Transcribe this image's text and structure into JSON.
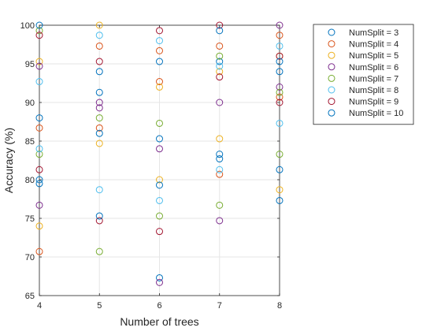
{
  "chart_data": {
    "type": "scatter",
    "xlabel": "Number of trees",
    "ylabel": "Accuracy (%)",
    "xlim": [
      4,
      8
    ],
    "ylim": [
      65,
      100
    ],
    "xticks": [
      "4",
      "5",
      "6",
      "7",
      "8"
    ],
    "yticks": [
      "65",
      "70",
      "75",
      "80",
      "85",
      "90",
      "95",
      "100"
    ],
    "grid": true,
    "legend_position": "top-right, outside plot",
    "marker": "open circle",
    "series": [
      {
        "name": "NumSplit = 3",
        "color": "#0072BD",
        "points": [
          [
            4,
            88.0
          ],
          [
            4,
            79.5
          ],
          [
            5,
            94.0
          ],
          [
            5,
            91.3
          ],
          [
            6,
            67.3
          ],
          [
            6,
            85.3
          ],
          [
            7,
            82.7
          ],
          [
            7,
            95.3
          ],
          [
            8,
            81.3
          ],
          [
            8,
            94.0
          ]
        ]
      },
      {
        "name": "NumSplit = 4",
        "color": "#D95319",
        "points": [
          [
            4,
            70.7
          ],
          [
            4,
            86.7
          ],
          [
            5,
            86.7
          ],
          [
            5,
            97.3
          ],
          [
            6,
            92.7
          ],
          [
            6,
            96.7
          ],
          [
            7,
            80.7
          ],
          [
            7,
            97.3
          ],
          [
            8,
            90.7
          ],
          [
            8,
            98.7
          ]
        ]
      },
      {
        "name": "NumSplit = 5",
        "color": "#EDB120",
        "points": [
          [
            4,
            74.0
          ],
          [
            4,
            95.3
          ],
          [
            5,
            84.7
          ],
          [
            5,
            100.0
          ],
          [
            6,
            80.0
          ],
          [
            6,
            92.0
          ],
          [
            7,
            85.3
          ],
          [
            7,
            94.0
          ],
          [
            8,
            78.7
          ],
          [
            8,
            96.0
          ]
        ]
      },
      {
        "name": "NumSplit = 6",
        "color": "#7E2F8E",
        "points": [
          [
            4,
            76.7
          ],
          [
            4,
            94.7
          ],
          [
            5,
            89.3
          ],
          [
            5,
            90.0
          ],
          [
            6,
            66.7
          ],
          [
            6,
            84.0
          ],
          [
            7,
            74.7
          ],
          [
            7,
            90.0
          ],
          [
            8,
            92.0
          ],
          [
            8,
            100.0
          ]
        ]
      },
      {
        "name": "NumSplit = 7",
        "color": "#77AC30",
        "points": [
          [
            4,
            83.3
          ],
          [
            4,
            99.3
          ],
          [
            5,
            70.7
          ],
          [
            5,
            88.0
          ],
          [
            6,
            75.3
          ],
          [
            6,
            87.3
          ],
          [
            7,
            76.7
          ],
          [
            7,
            96.0
          ],
          [
            8,
            83.3
          ],
          [
            8,
            91.3
          ]
        ]
      },
      {
        "name": "NumSplit = 8",
        "color": "#4DBEEE",
        "points": [
          [
            4,
            84.0
          ],
          [
            4,
            92.7
          ],
          [
            5,
            78.7
          ],
          [
            5,
            98.7
          ],
          [
            6,
            77.3
          ],
          [
            6,
            98.0
          ],
          [
            7,
            81.3
          ],
          [
            7,
            94.7
          ],
          [
            8,
            87.3
          ],
          [
            8,
            97.3
          ]
        ]
      },
      {
        "name": "NumSplit = 9",
        "color": "#A2142F",
        "points": [
          [
            4,
            81.3
          ],
          [
            4,
            98.7
          ],
          [
            5,
            74.7
          ],
          [
            5,
            95.3
          ],
          [
            6,
            73.3
          ],
          [
            6,
            99.3
          ],
          [
            7,
            93.3
          ],
          [
            7,
            100.0
          ],
          [
            8,
            90.0
          ],
          [
            8,
            96.0
          ]
        ]
      },
      {
        "name": "NumSplit = 10",
        "color": "#0072BD",
        "points": [
          [
            4,
            80.0
          ],
          [
            4,
            100.0
          ],
          [
            5,
            75.3
          ],
          [
            5,
            86.0
          ],
          [
            6,
            79.3
          ],
          [
            6,
            95.3
          ],
          [
            7,
            83.3
          ],
          [
            7,
            99.3
          ],
          [
            8,
            77.3
          ],
          [
            8,
            95.3
          ]
        ]
      }
    ]
  }
}
